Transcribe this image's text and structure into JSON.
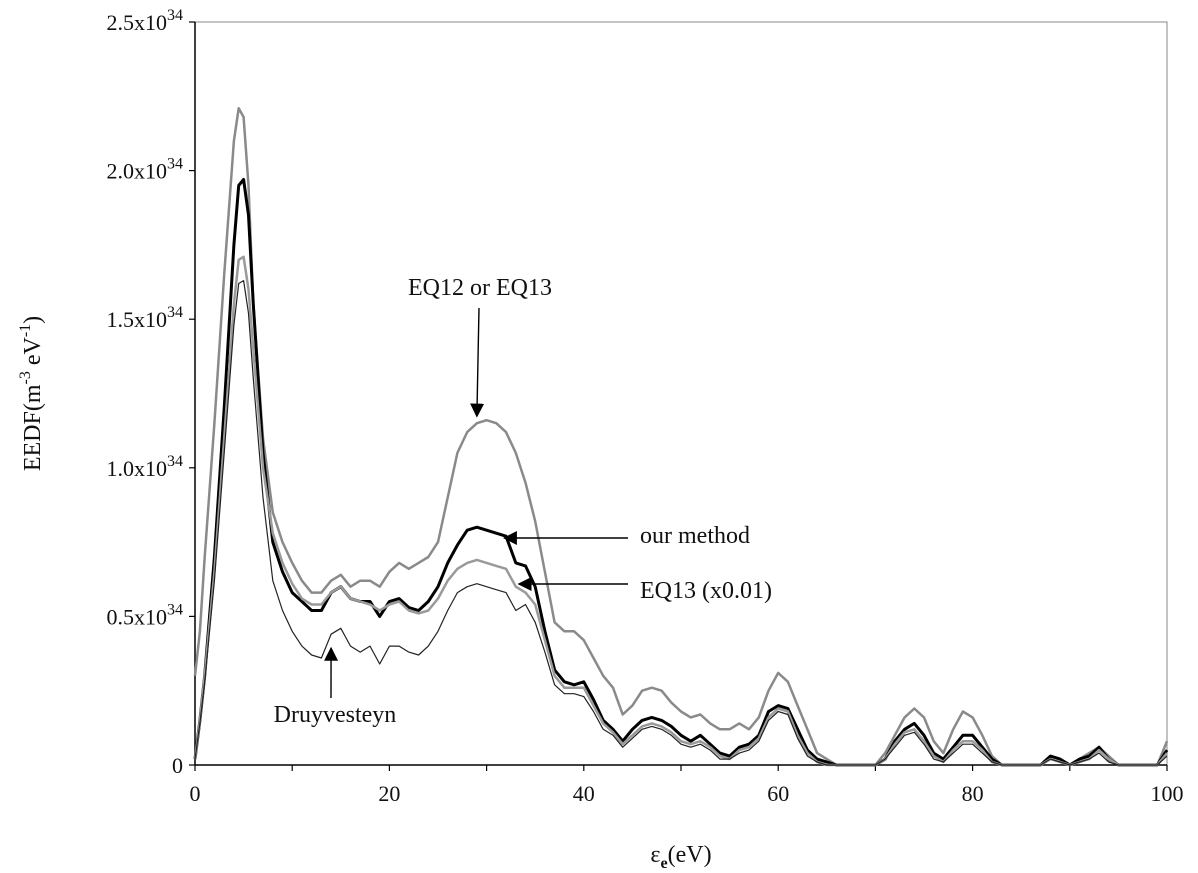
{
  "chart_data": {
    "type": "line",
    "title": "",
    "xlabel": {
      "main": "ε",
      "sub": "e",
      "unit": "(eV)"
    },
    "ylabel": {
      "main": "EEDF(m",
      "sup1": "-3",
      "mid": " eV",
      "sup2": "-1",
      "end": ")"
    },
    "xlim": [
      0,
      100
    ],
    "ylim": [
      0,
      2.5e+34
    ],
    "grid": false,
    "legend": "none",
    "x_ticks": [
      {
        "value": 0,
        "label": "0"
      },
      {
        "value": 20,
        "label": "20"
      },
      {
        "value": 40,
        "label": "40"
      },
      {
        "value": 60,
        "label": "60"
      },
      {
        "value": 80,
        "label": "80"
      },
      {
        "value": 100,
        "label": "100"
      }
    ],
    "y_ticks": [
      {
        "value": 0,
        "mant": "0",
        "exp": ""
      },
      {
        "value": 5e+33,
        "mant": "0.5x10",
        "exp": "34"
      },
      {
        "value": 1e+34,
        "mant": "1.0x10",
        "exp": "34"
      },
      {
        "value": 1.5e+34,
        "mant": "1.5x10",
        "exp": "34"
      },
      {
        "value": 2e+34,
        "mant": "2.0x10",
        "exp": "34"
      },
      {
        "value": 2.5e+34,
        "mant": "2.5x10",
        "exp": "34"
      }
    ],
    "series": [
      {
        "key": "eq12",
        "color": "#8a8a8a",
        "width": 2.5,
        "x": [
          0,
          0.5,
          1,
          2,
          3,
          4,
          4.5,
          5,
          5.5,
          6,
          7,
          8,
          9,
          10,
          11,
          12,
          13,
          14,
          15,
          16,
          17,
          18,
          19,
          20,
          21,
          22,
          23,
          24,
          25,
          26,
          27,
          28,
          29,
          30,
          31,
          32,
          33,
          34,
          35,
          36,
          37,
          38,
          39,
          40,
          41,
          42,
          43,
          44,
          45,
          46,
          47,
          48,
          49,
          50,
          51,
          52,
          53,
          54,
          55,
          56,
          57,
          58,
          59,
          60,
          61,
          62,
          63,
          64,
          65,
          66,
          67,
          68,
          69,
          70,
          71,
          72,
          73,
          74,
          75,
          76,
          77,
          78,
          79,
          80,
          81,
          82,
          83,
          84,
          85,
          86,
          87,
          88,
          89,
          90,
          91,
          92,
          93,
          94,
          95,
          96,
          97,
          98,
          99,
          100
        ],
        "y": [
          0.3,
          0.45,
          0.7,
          1.15,
          1.65,
          2.1,
          2.21,
          2.18,
          1.95,
          1.55,
          1.1,
          0.85,
          0.75,
          0.68,
          0.62,
          0.58,
          0.58,
          0.62,
          0.64,
          0.6,
          0.62,
          0.62,
          0.6,
          0.65,
          0.68,
          0.66,
          0.68,
          0.7,
          0.75,
          0.9,
          1.05,
          1.12,
          1.15,
          1.16,
          1.15,
          1.12,
          1.05,
          0.95,
          0.82,
          0.65,
          0.48,
          0.45,
          0.45,
          0.42,
          0.36,
          0.3,
          0.26,
          0.17,
          0.2,
          0.25,
          0.26,
          0.25,
          0.21,
          0.18,
          0.16,
          0.17,
          0.14,
          0.12,
          0.12,
          0.14,
          0.12,
          0.16,
          0.25,
          0.31,
          0.28,
          0.2,
          0.12,
          0.04,
          0.02,
          0.0,
          0.0,
          0.0,
          0.0,
          0.0,
          0.04,
          0.1,
          0.16,
          0.19,
          0.16,
          0.08,
          0.04,
          0.12,
          0.18,
          0.16,
          0.1,
          0.03,
          0.0,
          0.0,
          0.0,
          0.0,
          0.0,
          0.03,
          0.02,
          0.0,
          0.02,
          0.04,
          0.06,
          0.03,
          0.0,
          0.0,
          0.0,
          0.0,
          0.0,
          0.08
        ]
      },
      {
        "key": "our",
        "color": "#000000",
        "width": 3,
        "x": [
          0,
          0.5,
          1,
          2,
          3,
          4,
          4.5,
          5,
          5.5,
          6,
          7,
          8,
          9,
          10,
          11,
          12,
          13,
          14,
          15,
          16,
          17,
          18,
          19,
          20,
          21,
          22,
          23,
          24,
          25,
          26,
          27,
          28,
          29,
          30,
          31,
          32,
          33,
          34,
          35,
          36,
          37,
          38,
          39,
          40,
          41,
          42,
          43,
          44,
          45,
          46,
          47,
          48,
          49,
          50,
          51,
          52,
          53,
          54,
          55,
          56,
          57,
          58,
          59,
          60,
          61,
          62,
          63,
          64,
          65,
          66,
          67,
          68,
          69,
          70,
          71,
          72,
          73,
          74,
          75,
          76,
          77,
          78,
          79,
          80,
          81,
          82,
          83,
          84,
          85,
          86,
          87,
          88,
          89,
          90,
          91,
          92,
          93,
          94,
          95,
          96,
          97,
          98,
          99,
          100
        ],
        "y": [
          0.02,
          0.15,
          0.3,
          0.7,
          1.2,
          1.75,
          1.95,
          1.97,
          1.85,
          1.55,
          1.05,
          0.75,
          0.65,
          0.58,
          0.55,
          0.52,
          0.52,
          0.58,
          0.6,
          0.56,
          0.55,
          0.55,
          0.5,
          0.55,
          0.56,
          0.53,
          0.52,
          0.55,
          0.6,
          0.68,
          0.74,
          0.79,
          0.8,
          0.79,
          0.78,
          0.77,
          0.68,
          0.67,
          0.6,
          0.45,
          0.32,
          0.28,
          0.27,
          0.28,
          0.22,
          0.15,
          0.12,
          0.08,
          0.12,
          0.15,
          0.16,
          0.15,
          0.13,
          0.1,
          0.08,
          0.1,
          0.07,
          0.04,
          0.03,
          0.06,
          0.07,
          0.1,
          0.18,
          0.2,
          0.19,
          0.12,
          0.05,
          0.02,
          0.01,
          0.0,
          0.0,
          0.0,
          0.0,
          0.0,
          0.02,
          0.08,
          0.12,
          0.14,
          0.1,
          0.04,
          0.02,
          0.06,
          0.1,
          0.1,
          0.06,
          0.02,
          0.0,
          0.0,
          0.0,
          0.0,
          0.0,
          0.03,
          0.02,
          0.0,
          0.02,
          0.03,
          0.06,
          0.02,
          0.0,
          0.0,
          0.0,
          0.0,
          0.0,
          0.05
        ]
      },
      {
        "key": "eq13",
        "color": "#9a9a9a",
        "width": 2.5,
        "x": [
          0,
          0.5,
          1,
          2,
          3,
          4,
          4.5,
          5,
          5.5,
          6,
          7,
          8,
          9,
          10,
          11,
          12,
          13,
          14,
          15,
          16,
          17,
          18,
          19,
          20,
          21,
          22,
          23,
          24,
          25,
          26,
          27,
          28,
          29,
          30,
          31,
          32,
          33,
          34,
          35,
          36,
          37,
          38,
          39,
          40,
          41,
          42,
          43,
          44,
          45,
          46,
          47,
          48,
          49,
          50,
          51,
          52,
          53,
          54,
          55,
          56,
          57,
          58,
          59,
          60,
          61,
          62,
          63,
          64,
          65,
          66,
          67,
          68,
          69,
          70,
          71,
          72,
          73,
          74,
          75,
          76,
          77,
          78,
          79,
          80,
          81,
          82,
          83,
          84,
          85,
          86,
          87,
          88,
          89,
          90,
          91,
          92,
          93,
          94,
          95,
          96,
          97,
          98,
          99,
          100
        ],
        "y": [
          0.02,
          0.15,
          0.3,
          0.65,
          1.1,
          1.55,
          1.7,
          1.71,
          1.6,
          1.4,
          1.0,
          0.78,
          0.68,
          0.61,
          0.56,
          0.54,
          0.54,
          0.58,
          0.6,
          0.56,
          0.55,
          0.54,
          0.52,
          0.54,
          0.55,
          0.52,
          0.51,
          0.52,
          0.56,
          0.62,
          0.66,
          0.68,
          0.69,
          0.68,
          0.67,
          0.66,
          0.6,
          0.58,
          0.54,
          0.42,
          0.3,
          0.26,
          0.26,
          0.26,
          0.2,
          0.14,
          0.11,
          0.07,
          0.1,
          0.13,
          0.14,
          0.13,
          0.11,
          0.08,
          0.07,
          0.08,
          0.06,
          0.03,
          0.02,
          0.05,
          0.06,
          0.09,
          0.16,
          0.19,
          0.18,
          0.1,
          0.04,
          0.01,
          0.0,
          0.0,
          0.0,
          0.0,
          0.0,
          0.0,
          0.02,
          0.07,
          0.11,
          0.12,
          0.08,
          0.03,
          0.01,
          0.05,
          0.08,
          0.08,
          0.05,
          0.01,
          0.0,
          0.0,
          0.0,
          0.0,
          0.0,
          0.02,
          0.01,
          0.0,
          0.01,
          0.02,
          0.05,
          0.02,
          0.0,
          0.0,
          0.0,
          0.0,
          0.0,
          0.04
        ]
      },
      {
        "key": "druy",
        "color": "#222222",
        "width": 1.2,
        "x": [
          0,
          0.5,
          1,
          2,
          3,
          4,
          4.5,
          5,
          5.5,
          6,
          7,
          8,
          9,
          10,
          11,
          12,
          13,
          14,
          15,
          16,
          17,
          18,
          19,
          20,
          21,
          22,
          23,
          24,
          25,
          26,
          27,
          28,
          29,
          30,
          31,
          32,
          33,
          34,
          35,
          36,
          37,
          38,
          39,
          40,
          41,
          42,
          43,
          44,
          45,
          46,
          47,
          48,
          49,
          50,
          51,
          52,
          53,
          54,
          55,
          56,
          57,
          58,
          59,
          60,
          61,
          62,
          63,
          64,
          65,
          66,
          67,
          68,
          69,
          70,
          71,
          72,
          73,
          74,
          75,
          76,
          77,
          78,
          79,
          80,
          81,
          82,
          83,
          84,
          85,
          86,
          87,
          88,
          89,
          90,
          91,
          92,
          93,
          94,
          95,
          96,
          97,
          98,
          99,
          100
        ],
        "y": [
          0.02,
          0.14,
          0.28,
          0.62,
          1.05,
          1.48,
          1.62,
          1.63,
          1.52,
          1.3,
          0.9,
          0.62,
          0.52,
          0.45,
          0.4,
          0.37,
          0.36,
          0.44,
          0.46,
          0.4,
          0.38,
          0.4,
          0.34,
          0.4,
          0.4,
          0.38,
          0.37,
          0.4,
          0.45,
          0.52,
          0.58,
          0.6,
          0.61,
          0.6,
          0.59,
          0.58,
          0.52,
          0.54,
          0.48,
          0.38,
          0.27,
          0.24,
          0.24,
          0.23,
          0.18,
          0.12,
          0.1,
          0.06,
          0.09,
          0.12,
          0.13,
          0.12,
          0.1,
          0.07,
          0.06,
          0.07,
          0.05,
          0.02,
          0.02,
          0.04,
          0.05,
          0.08,
          0.15,
          0.18,
          0.17,
          0.09,
          0.03,
          0.01,
          0.0,
          0.0,
          0.0,
          0.0,
          0.0,
          0.0,
          0.02,
          0.06,
          0.1,
          0.11,
          0.07,
          0.02,
          0.01,
          0.04,
          0.07,
          0.07,
          0.04,
          0.01,
          0.0,
          0.0,
          0.0,
          0.0,
          0.0,
          0.02,
          0.01,
          0.0,
          0.01,
          0.02,
          0.04,
          0.01,
          0.0,
          0.0,
          0.0,
          0.0,
          0.0,
          0.03
        ]
      }
    ],
    "annotations": [
      {
        "key": "eq12",
        "text": "EQ12 or EQ13",
        "target": [
          29,
          1.16
        ]
      },
      {
        "key": "our",
        "text": "our method",
        "target": [
          31,
          0.77
        ]
      },
      {
        "key": "eq13",
        "text": "EQ13 (x0.01)",
        "target": [
          32.5,
          0.6
        ]
      },
      {
        "key": "druy",
        "text": "Druyvesteyn",
        "target": [
          14,
          0.42
        ]
      }
    ]
  }
}
